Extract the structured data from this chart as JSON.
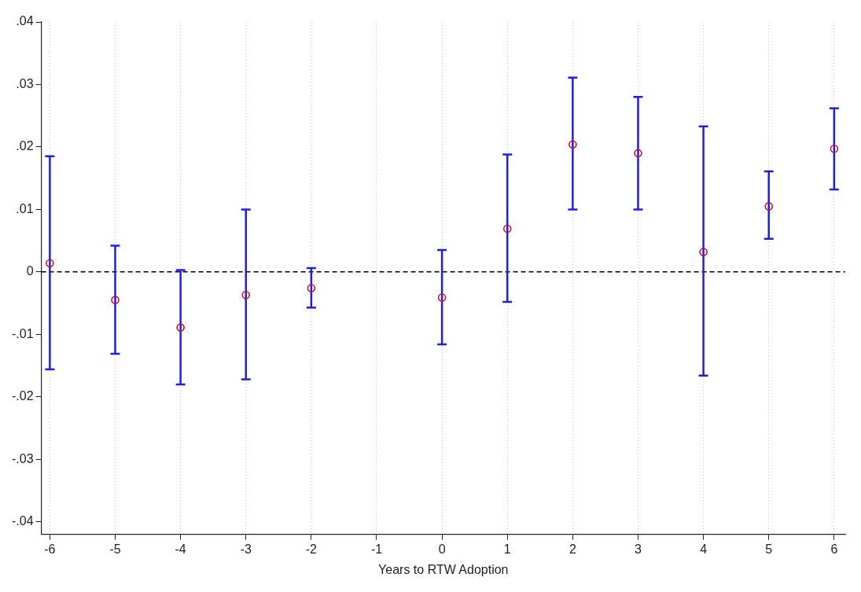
{
  "chart_data": {
    "type": "scatter",
    "xlabel": "Years to RTW Adoption",
    "x": [
      -6,
      -5,
      -4,
      -3,
      -2,
      -1,
      0,
      1,
      2,
      3,
      4,
      5,
      6
    ],
    "series": [
      {
        "color": "#c8102e",
        "values": [
          0.0014,
          -0.0045,
          -0.0089,
          -0.0037,
          -0.0026,
          null,
          -0.0041,
          0.0069,
          0.0204,
          0.019,
          0.0032,
          0.0105,
          0.0197
        ],
        "errors": [
          [
            -0.0156,
            0.0185
          ],
          [
            -0.0131,
            0.0042
          ],
          [
            -0.018,
            0.0003
          ],
          [
            -0.0172,
            0.01
          ],
          [
            -0.0057,
            0.0006
          ],
          null,
          [
            -0.0116,
            0.0035
          ],
          [
            -0.0048,
            0.0188
          ],
          [
            0.01,
            0.0311
          ],
          [
            0.01,
            0.028
          ],
          [
            -0.0166,
            0.0233
          ],
          [
            0.0053,
            0.0161
          ],
          [
            0.0132,
            0.0262
          ]
        ]
      }
    ],
    "xlim": [
      -6.13,
      6.17
    ],
    "xticks": [
      -6,
      -5,
      -4,
      -3,
      -2,
      -1,
      0,
      1,
      2,
      3,
      4,
      5,
      6
    ],
    "ylim": [
      -0.042,
      0.04
    ],
    "yticks": [
      {
        "value": -0.04,
        "label": "-.04"
      },
      {
        "value": -0.03,
        "label": "-.03"
      },
      {
        "value": -0.02,
        "label": "-.02"
      },
      {
        "value": -0.01,
        "label": "-.01"
      },
      {
        "value": 0,
        "label": "0"
      },
      {
        "value": 0.01,
        "label": ".01"
      },
      {
        "value": 0.02,
        "label": ".02"
      },
      {
        "value": 0.03,
        "label": ".03"
      },
      {
        "value": 0.04,
        "label": ".04"
      }
    ],
    "grid": "x",
    "marker": "circle",
    "legend": false,
    "ref_lines": [
      {
        "axis": "y",
        "value": 0,
        "color": "#000000",
        "line_style": "dashed"
      }
    ]
  }
}
